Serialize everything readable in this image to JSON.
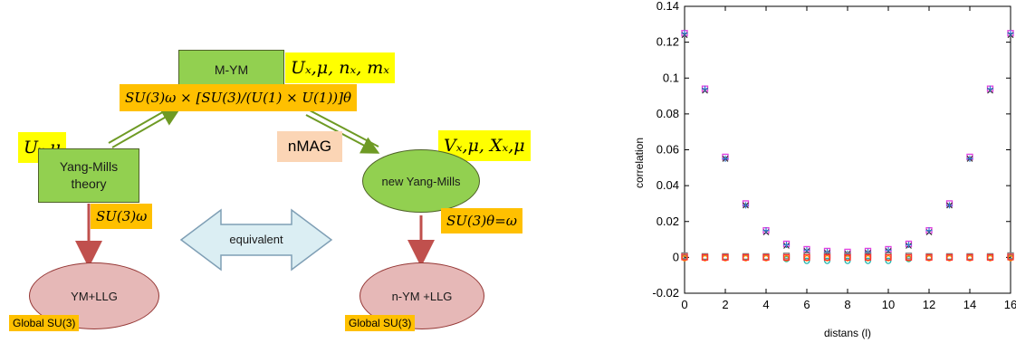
{
  "diagram": {
    "myn_box": "M-YM",
    "myn_vars": "Uₓ,μ, nₓ, mₓ",
    "myn_group": "SU(3)ω × [SU(3)/(U(1) × U(1))]θ",
    "ym_vars": "Uₓ,μ",
    "ym_box": "Yang-Mills theory",
    "ym_group": "SU(3)ω",
    "nmag": "nMAG",
    "newym_vars": "Vₓ,μ, Xₓ,μ",
    "newym_ellipse": "new Yang-Mills",
    "newym_group": "SU(3)θ=ω",
    "equivalent": "equivalent",
    "ym_llg": "YM+LLG",
    "ym_global": "Global SU(3)",
    "nym_llg": "n-YM +LLG",
    "nym_global": "Global SU(3)"
  },
  "chart_data": {
    "type": "scatter",
    "xlabel": "distans (l)",
    "ylabel": "correlation",
    "xlim": [
      0,
      16
    ],
    "ylim": [
      -0.02,
      0.14
    ],
    "xticks": [
      "0",
      "2",
      "4",
      "6",
      "8",
      "10",
      "12",
      "14",
      "16"
    ],
    "yticks": [
      "-0.02",
      "0",
      "0.02",
      "0.04",
      "0.06",
      "0.08",
      "0.1",
      "0.12",
      "0.14"
    ],
    "series": [
      {
        "color": "#e040e0",
        "marker": "square",
        "x": [
          0,
          1,
          2,
          3,
          4,
          5,
          6,
          7,
          8,
          9,
          10,
          11,
          12,
          13,
          14,
          15,
          16
        ],
        "values": [
          0.125,
          0.094,
          0.056,
          0.03,
          0.015,
          0.0075,
          0.0045,
          0.0035,
          0.003,
          0.0035,
          0.0045,
          0.0075,
          0.015,
          0.03,
          0.056,
          0.094,
          0.125
        ]
      },
      {
        "color": "#333333",
        "marker": "x",
        "x": [
          0,
          1,
          2,
          3,
          4,
          5,
          6,
          7,
          8,
          9,
          10,
          11,
          12,
          13,
          14,
          15,
          16
        ],
        "values": [
          0.124,
          0.093,
          0.055,
          0.029,
          0.014,
          0.0065,
          0.0035,
          0.0025,
          0.002,
          0.0025,
          0.0035,
          0.0065,
          0.014,
          0.029,
          0.055,
          0.093,
          0.124
        ]
      },
      {
        "color": "#3a7bd5",
        "marker": "plus",
        "x": [
          0,
          1,
          2,
          3,
          4,
          5,
          6,
          7,
          8,
          9,
          10,
          11,
          12,
          13,
          14,
          15,
          16
        ],
        "values": [
          0.125,
          0.094,
          0.055,
          0.029,
          0.015,
          0.007,
          0.004,
          0.003,
          0.002,
          0.003,
          0.004,
          0.007,
          0.015,
          0.029,
          0.055,
          0.094,
          0.125
        ]
      },
      {
        "color": "#808080",
        "marker": "square",
        "x": [
          0,
          1,
          2,
          3,
          4,
          5,
          6,
          7,
          8,
          9,
          10,
          11,
          12,
          13,
          14,
          15,
          16
        ],
        "values": [
          0.001,
          0.0005,
          0.0005,
          0.0005,
          0.0005,
          0.0008,
          0.001,
          0.001,
          0.001,
          0.001,
          0.001,
          0.0008,
          0.0005,
          0.0005,
          0.0005,
          0.0005,
          0.001
        ]
      },
      {
        "color": "#20b2aa",
        "marker": "circle",
        "x": [
          0,
          1,
          2,
          3,
          4,
          5,
          6,
          7,
          8,
          9,
          10,
          11,
          12,
          13,
          14,
          15,
          16
        ],
        "values": [
          0.0,
          0.0,
          0.0,
          0.0,
          0.0,
          -0.001,
          -0.002,
          -0.002,
          -0.002,
          -0.002,
          -0.002,
          -0.001,
          0.0,
          0.0,
          0.0,
          0.0,
          0.0
        ]
      },
      {
        "color": "#ff8c00",
        "marker": "circle",
        "x": [
          0,
          1,
          2,
          3,
          4,
          5,
          6,
          7,
          8,
          9,
          10,
          11,
          12,
          13,
          14,
          15,
          16
        ],
        "values": [
          -0.0005,
          -0.0005,
          -0.0005,
          -0.0005,
          -0.0005,
          -0.0005,
          -0.0005,
          -0.0005,
          -0.0005,
          -0.0005,
          -0.0005,
          -0.0005,
          -0.0005,
          -0.0005,
          -0.0005,
          -0.0005,
          -0.0005
        ]
      },
      {
        "color": "#ff3030",
        "marker": "square",
        "x": [
          0,
          1,
          2,
          3,
          4,
          5,
          6,
          7,
          8,
          9,
          10,
          11,
          12,
          13,
          14,
          15,
          16
        ],
        "values": [
          0.0002,
          0.0,
          0.0,
          0.0,
          0.0,
          0.0,
          0.0,
          0.0,
          0.0,
          0.0,
          0.0,
          0.0,
          0.0,
          0.0,
          0.0,
          0.0,
          0.0002
        ]
      }
    ]
  }
}
